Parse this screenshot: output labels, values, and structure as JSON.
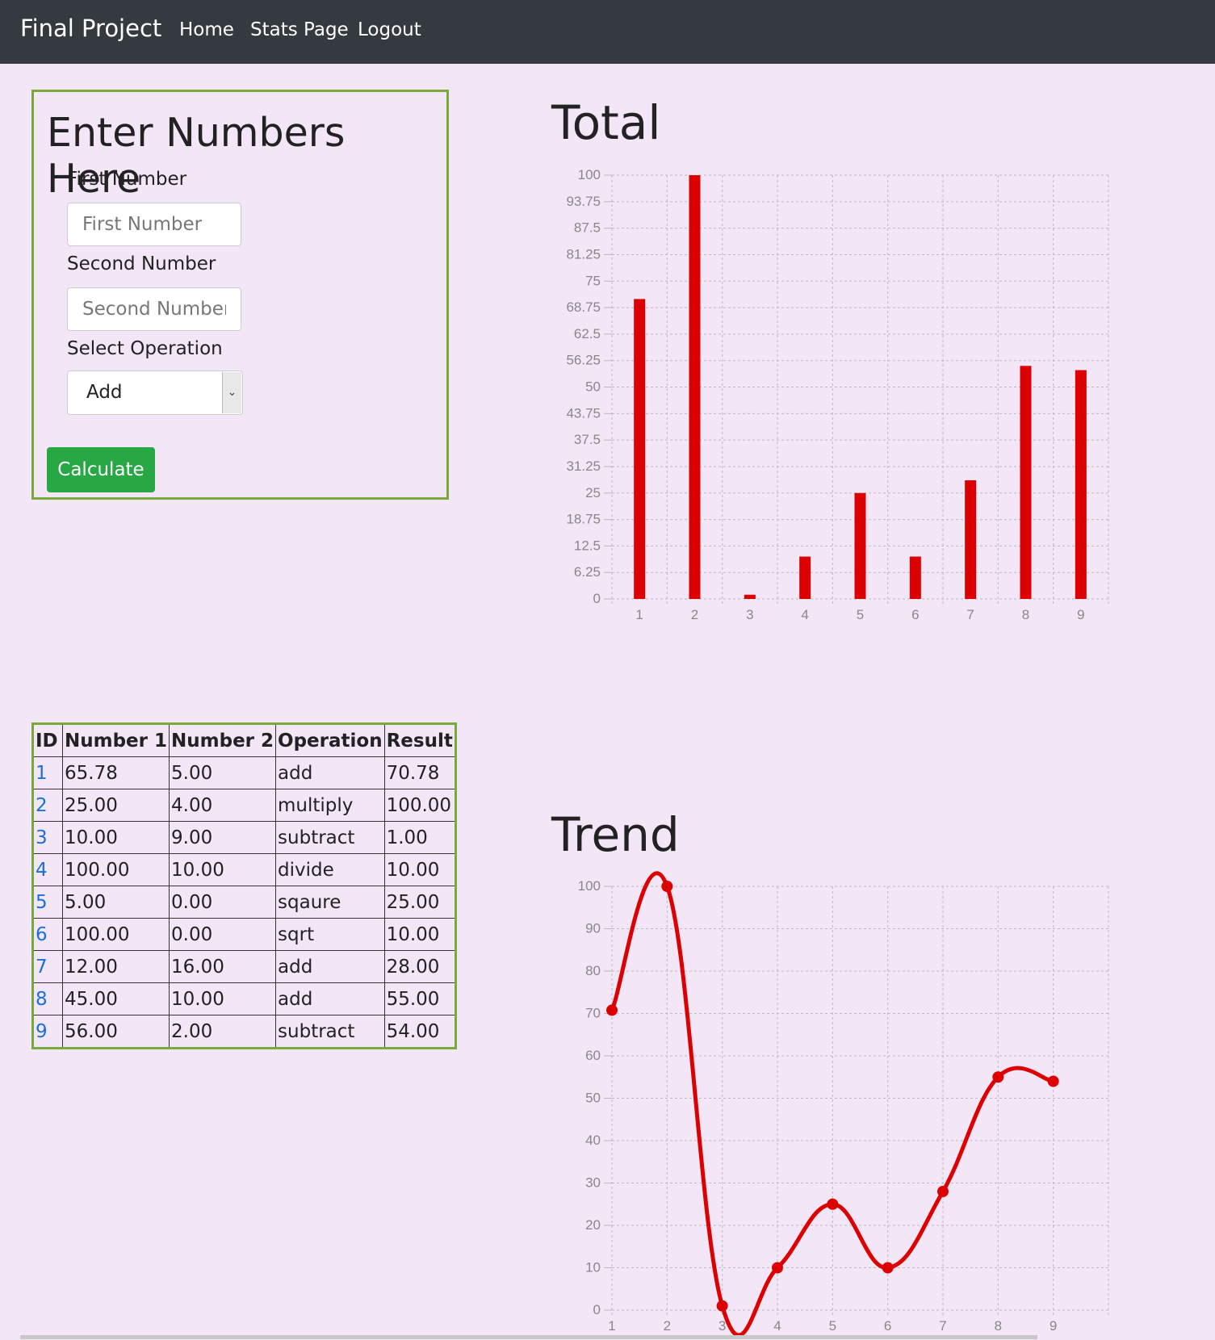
{
  "navbar": {
    "brand": "Final Project",
    "links": [
      "Home",
      "Stats Page",
      "Logout"
    ]
  },
  "form": {
    "title": "Enter Numbers Here",
    "first_label": "First Number",
    "first_placeholder": "First Number",
    "second_label": "Second Number",
    "second_placeholder": "Second Number",
    "operation_label": "Select Operation",
    "operation_value": "Add",
    "calculate_label": "Calculate"
  },
  "table": {
    "headers": [
      "ID",
      "Number 1",
      "Number 2",
      "Operation",
      "Result"
    ],
    "rows": [
      [
        "1",
        "65.78",
        "5.00",
        "add",
        "70.78"
      ],
      [
        "2",
        "25.00",
        "4.00",
        "multiply",
        "100.00"
      ],
      [
        "3",
        "10.00",
        "9.00",
        "subtract",
        "1.00"
      ],
      [
        "4",
        "100.00",
        "10.00",
        "divide",
        "10.00"
      ],
      [
        "5",
        "5.00",
        "0.00",
        "sqaure",
        "25.00"
      ],
      [
        "6",
        "100.00",
        "0.00",
        "sqrt",
        "10.00"
      ],
      [
        "7",
        "12.00",
        "16.00",
        "add",
        "28.00"
      ],
      [
        "8",
        "45.00",
        "10.00",
        "add",
        "55.00"
      ],
      [
        "9",
        "56.00",
        "2.00",
        "subtract",
        "54.00"
      ]
    ]
  },
  "colors": {
    "series": "#dd0000",
    "border_green": "#78a93a",
    "button_green": "#28a745",
    "navbar": "#343a40",
    "background": "#f2e6f7"
  },
  "chart_data": [
    {
      "type": "bar",
      "title": "Total",
      "categories": [
        "1",
        "2",
        "3",
        "4",
        "5",
        "6",
        "7",
        "8",
        "9"
      ],
      "values": [
        70.78,
        100,
        1,
        10,
        25,
        10,
        28,
        55,
        54
      ],
      "ylim": [
        0,
        100
      ],
      "yticks": [
        "0",
        "6.25",
        "12.5",
        "18.75",
        "25",
        "31.25",
        "37.5",
        "43.75",
        "50",
        "56.25",
        "62.5",
        "68.75",
        "75",
        "81.25",
        "87.5",
        "93.75",
        "100"
      ],
      "grid": true
    },
    {
      "type": "line",
      "title": "Trend",
      "categories": [
        "1",
        "2",
        "3",
        "4",
        "5",
        "6",
        "7",
        "8",
        "9"
      ],
      "values": [
        70.78,
        100,
        1,
        10,
        25,
        10,
        28,
        55,
        54
      ],
      "ylim": [
        0,
        100
      ],
      "yticks": [
        "0",
        "10",
        "20",
        "30",
        "40",
        "50",
        "60",
        "70",
        "80",
        "90",
        "100"
      ],
      "grid": true
    }
  ]
}
